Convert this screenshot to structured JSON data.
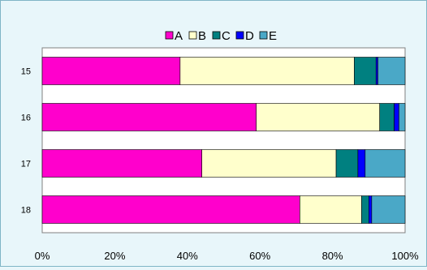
{
  "chart_data": {
    "type": "bar",
    "orientation": "horizontal",
    "stacked": "percent",
    "categories": [
      "15",
      "16",
      "17",
      "18"
    ],
    "series": [
      {
        "name": "A",
        "color": "#ff00cc",
        "values": [
          38,
          59,
          44,
          71
        ]
      },
      {
        "name": "B",
        "color": "#ffffcc",
        "values": [
          48,
          34,
          37,
          17
        ]
      },
      {
        "name": "C",
        "color": "#008080",
        "values": [
          6,
          4,
          6,
          2
        ]
      },
      {
        "name": "D",
        "color": "#0000ff",
        "values": [
          0.5,
          1.3,
          2,
          0.8
        ]
      },
      {
        "name": "E",
        "color": "#4aa8c7",
        "values": [
          7.5,
          1.7,
          11,
          9.2
        ]
      }
    ],
    "xticks": [
      "0%",
      "20%",
      "40%",
      "60%",
      "80%",
      "100%"
    ],
    "xlim": [
      0,
      100
    ],
    "legend_position": "top",
    "grid": false
  }
}
